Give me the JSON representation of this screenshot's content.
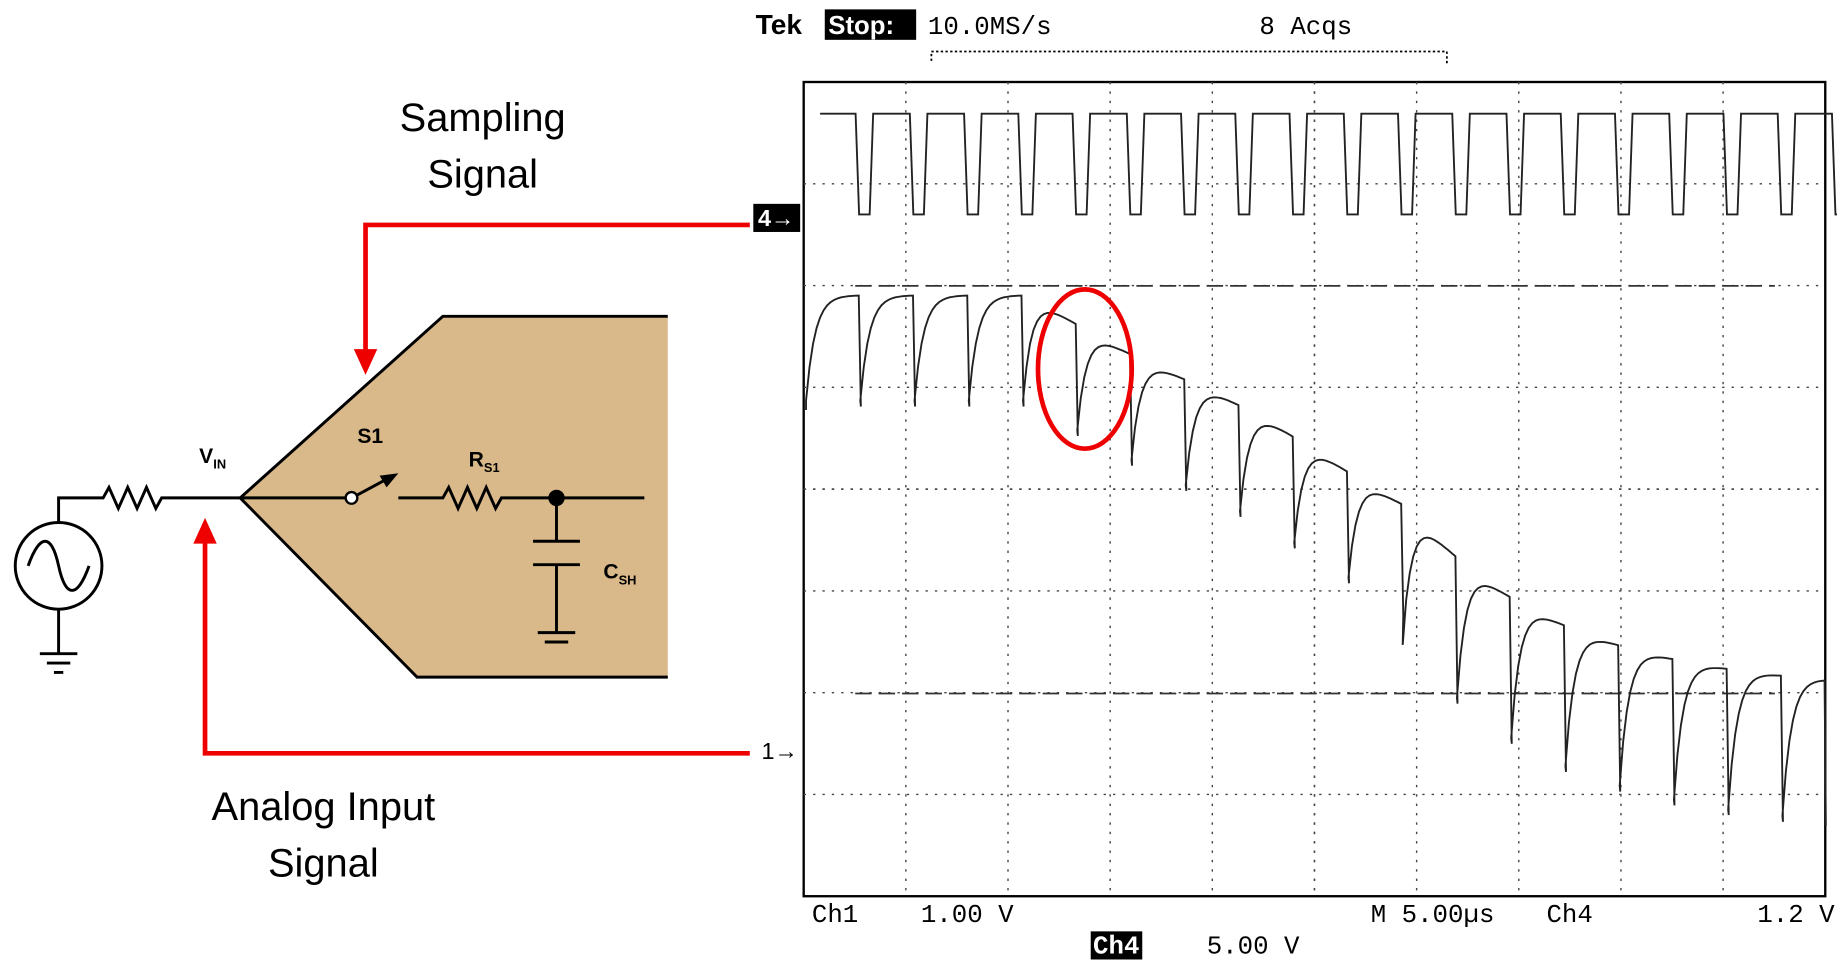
{
  "callouts": {
    "sampling": [
      "Sampling",
      "Signal"
    ],
    "analog": [
      "Analog Input",
      "Signal"
    ]
  },
  "circuit": {
    "vin": {
      "main": "V",
      "sub": "IN"
    },
    "switch": "S1",
    "resistor": {
      "main": "R",
      "sub": "S1"
    },
    "capacitor": {
      "main": "C",
      "sub": "SH"
    }
  },
  "scope": {
    "header": {
      "brand": "Tek",
      "state": "Stop:",
      "rate": "10.0MS/s",
      "acqs": "8 Acqs"
    },
    "markers": {
      "ch4": "4→",
      "ch1": "1→"
    },
    "footer": {
      "ch1": "Ch1",
      "ch1_scale": "1.00 V",
      "timebase": "M 5.00µs",
      "trigger_ch": "Ch4",
      "trigger_level": "1.2 V",
      "ch4": "Ch4",
      "ch4_scale": "5.00 V"
    }
  }
}
